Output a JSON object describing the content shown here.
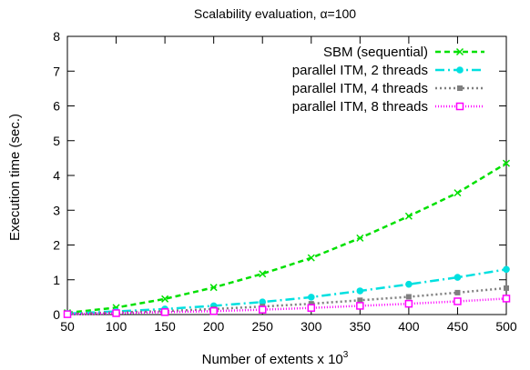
{
  "chart_data": {
    "type": "line",
    "title": "Scalability evaluation, α=100",
    "xlabel": "Number of extents x 10",
    "xlabel_sup": "3",
    "ylabel": "Execution time (sec.)",
    "x": [
      50,
      100,
      150,
      200,
      250,
      300,
      350,
      400,
      450,
      500
    ],
    "xlim": [
      50,
      500
    ],
    "ylim": [
      0,
      8
    ],
    "xticks": [
      "50",
      "100",
      "150",
      "200",
      "250",
      "300",
      "350",
      "400",
      "450",
      "500"
    ],
    "yticks": [
      "0",
      "1",
      "2",
      "3",
      "4",
      "5",
      "6",
      "7",
      "8"
    ],
    "grid": false,
    "legend_position": "top-right",
    "series": [
      {
        "name": "SBM (sequential)",
        "color": "#00e000",
        "dash": "6,4",
        "marker": "x",
        "values": [
          0.05,
          0.2,
          0.45,
          0.78,
          1.17,
          1.63,
          2.2,
          2.83,
          3.5,
          4.35
        ]
      },
      {
        "name": "parallel ITM, 2 threads",
        "color": "#00e0e0",
        "dash": "10,4,2,4",
        "marker": "circle",
        "values": [
          0.03,
          0.09,
          0.16,
          0.25,
          0.36,
          0.5,
          0.68,
          0.87,
          1.07,
          1.3
        ]
      },
      {
        "name": "parallel ITM, 4 threads",
        "color": "#7f7f7f",
        "dash": "2,3",
        "marker": "filled-square",
        "values": [
          0.02,
          0.06,
          0.1,
          0.16,
          0.23,
          0.31,
          0.41,
          0.51,
          0.63,
          0.76
        ]
      },
      {
        "name": "parallel ITM, 8 threads",
        "color": "#ff00ff",
        "dash": "1,2",
        "marker": "open-square",
        "values": [
          0.01,
          0.04,
          0.07,
          0.1,
          0.14,
          0.19,
          0.25,
          0.31,
          0.38,
          0.46
        ]
      }
    ]
  }
}
